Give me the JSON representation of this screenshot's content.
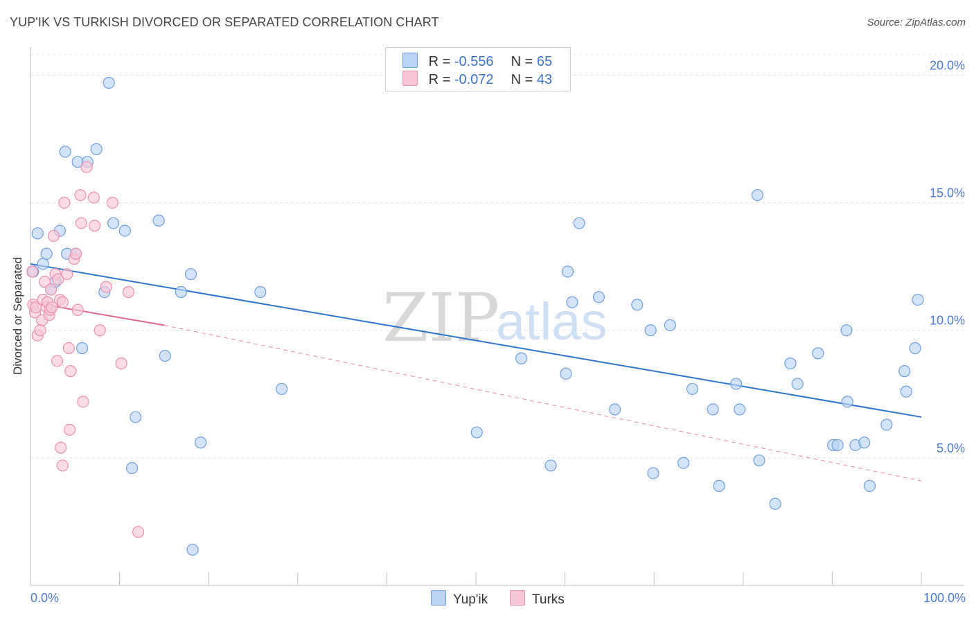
{
  "chart_data": {
    "type": "scatter",
    "title": "YUP'IK VS TURKISH DIVORCED OR SEPARATED CORRELATION CHART",
    "source": "Source: ZipAtlas.com",
    "ylabel": "Divorced or Separated",
    "xlabel": "",
    "xlim": [
      0,
      100
    ],
    "ylim": [
      0,
      20.8
    ],
    "y_ticks": [
      {
        "value": 5,
        "label": "5.0%"
      },
      {
        "value": 10,
        "label": "10.0%"
      },
      {
        "value": 15,
        "label": "15.0%"
      },
      {
        "value": 20,
        "label": "20.0%"
      }
    ],
    "x_tick_labels": {
      "min": "0.0%",
      "max": "100.0%"
    },
    "watermark": {
      "zip": "ZIP",
      "atlas": "atlas"
    },
    "legend_stats": [
      {
        "r_label": "R =",
        "r_value": "-0.556",
        "n_label": "N =",
        "n_value": "65"
      },
      {
        "r_label": "R =",
        "r_value": "-0.072",
        "n_label": "N =",
        "n_value": "43"
      }
    ],
    "series": [
      {
        "name": "Yup'ik",
        "color": "#6f9fe0",
        "fill": "#bcd4f4",
        "trend": {
          "x0": 0,
          "y0": 12.6,
          "x1": 100,
          "y1": 6.6,
          "color": "#2e73cf"
        },
        "points": [
          [
            0.3,
            12.3
          ],
          [
            0.8,
            13.8
          ],
          [
            1.4,
            12.6
          ],
          [
            1.8,
            13.0
          ],
          [
            2.3,
            11.6
          ],
          [
            2.8,
            11.9
          ],
          [
            3.3,
            13.9
          ],
          [
            3.9,
            17.0
          ],
          [
            4.1,
            13.0
          ],
          [
            5.1,
            13.0
          ],
          [
            5.3,
            16.6
          ],
          [
            5.8,
            9.3
          ],
          [
            6.4,
            16.6
          ],
          [
            7.4,
            17.1
          ],
          [
            8.3,
            11.5
          ],
          [
            8.8,
            19.7
          ],
          [
            9.3,
            14.2
          ],
          [
            10.6,
            13.9
          ],
          [
            11.4,
            4.6
          ],
          [
            11.8,
            6.6
          ],
          [
            14.4,
            14.3
          ],
          [
            15.1,
            9.0
          ],
          [
            16.9,
            11.5
          ],
          [
            18.0,
            12.2
          ],
          [
            18.2,
            1.4
          ],
          [
            19.1,
            5.6
          ],
          [
            25.8,
            11.5
          ],
          [
            28.2,
            7.7
          ],
          [
            50.1,
            6.0
          ],
          [
            55.1,
            8.9
          ],
          [
            58.4,
            4.7
          ],
          [
            60.1,
            8.3
          ],
          [
            60.3,
            12.3
          ],
          [
            60.8,
            11.1
          ],
          [
            61.6,
            14.2
          ],
          [
            63.8,
            11.3
          ],
          [
            65.6,
            6.9
          ],
          [
            68.1,
            11.0
          ],
          [
            69.6,
            10.0
          ],
          [
            69.9,
            4.4
          ],
          [
            71.8,
            10.2
          ],
          [
            73.3,
            4.8
          ],
          [
            74.3,
            7.7
          ],
          [
            76.6,
            6.9
          ],
          [
            77.3,
            3.9
          ],
          [
            79.2,
            7.9
          ],
          [
            79.6,
            6.9
          ],
          [
            81.6,
            15.3
          ],
          [
            81.8,
            4.9
          ],
          [
            83.6,
            3.2
          ],
          [
            85.3,
            8.7
          ],
          [
            86.1,
            7.9
          ],
          [
            88.4,
            9.1
          ],
          [
            90.1,
            5.5
          ],
          [
            90.6,
            5.5
          ],
          [
            91.6,
            10.0
          ],
          [
            91.7,
            7.2
          ],
          [
            92.6,
            5.5
          ],
          [
            93.6,
            5.6
          ],
          [
            94.2,
            3.9
          ],
          [
            96.1,
            6.3
          ],
          [
            98.1,
            8.4
          ],
          [
            98.3,
            7.6
          ],
          [
            99.3,
            9.3
          ],
          [
            99.6,
            11.2
          ]
        ]
      },
      {
        "name": "Turks",
        "color": "#ec8fae",
        "fill": "#f8c8d8",
        "trend": {
          "x0": 0,
          "y0": 11.1,
          "x1": 15,
          "y1": 10.2,
          "color": "#e0688f"
        },
        "trend_ext": {
          "x0": 15,
          "y0": 10.2,
          "x1": 100,
          "y1": 4.1,
          "color": "#e58aa8"
        },
        "points": [
          [
            0.2,
            12.3
          ],
          [
            0.3,
            11.0
          ],
          [
            0.5,
            10.7
          ],
          [
            0.6,
            10.9
          ],
          [
            0.8,
            9.8
          ],
          [
            1.1,
            10.0
          ],
          [
            1.3,
            10.4
          ],
          [
            1.4,
            11.2
          ],
          [
            1.6,
            11.9
          ],
          [
            1.8,
            10.9
          ],
          [
            1.9,
            11.1
          ],
          [
            2.1,
            10.6
          ],
          [
            2.2,
            10.8
          ],
          [
            2.3,
            11.6
          ],
          [
            2.4,
            10.9
          ],
          [
            2.6,
            13.7
          ],
          [
            2.8,
            12.2
          ],
          [
            3.0,
            8.8
          ],
          [
            3.1,
            12.0
          ],
          [
            3.3,
            11.2
          ],
          [
            3.4,
            5.4
          ],
          [
            3.6,
            4.7
          ],
          [
            3.6,
            11.1
          ],
          [
            3.8,
            15.0
          ],
          [
            4.1,
            12.2
          ],
          [
            4.3,
            9.3
          ],
          [
            4.4,
            6.1
          ],
          [
            4.5,
            8.4
          ],
          [
            4.9,
            12.8
          ],
          [
            5.1,
            13.0
          ],
          [
            5.6,
            15.3
          ],
          [
            5.7,
            14.2
          ],
          [
            5.9,
            7.2
          ],
          [
            6.3,
            16.4
          ],
          [
            7.1,
            15.2
          ],
          [
            7.2,
            14.1
          ],
          [
            7.8,
            10.0
          ],
          [
            8.5,
            11.7
          ],
          [
            9.2,
            15.0
          ],
          [
            10.2,
            8.7
          ],
          [
            11.0,
            11.5
          ],
          [
            12.1,
            2.1
          ],
          [
            5.3,
            10.8
          ]
        ]
      }
    ]
  }
}
